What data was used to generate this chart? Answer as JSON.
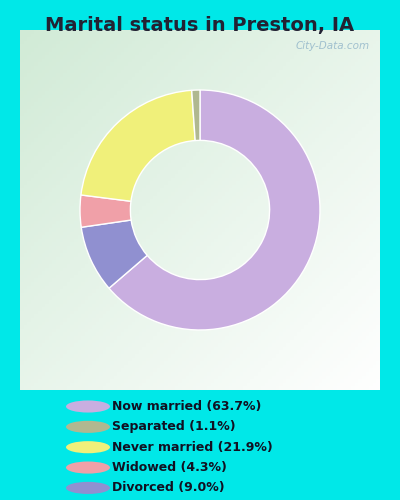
{
  "title": "Marital status in Preston, IA",
  "values": [
    63.7,
    9.0,
    4.3,
    21.9,
    1.1
  ],
  "colors": [
    "#c9aee0",
    "#9090d0",
    "#f0a0a8",
    "#f0f07a",
    "#b0b890"
  ],
  "legend_order": [
    0,
    4,
    3,
    2,
    1
  ],
  "legend_labels": [
    "Now married (63.7%)",
    "Separated (1.1%)",
    "Never married (21.9%)",
    "Widowed (4.3%)",
    "Divorced (9.0%)"
  ],
  "legend_colors": [
    "#c9aee0",
    "#b0b890",
    "#f0f07a",
    "#f0a0a8",
    "#9090d0"
  ],
  "bg_outer": "#00e8e8",
  "bg_chart_color": "#d8eedc",
  "title_fontsize": 14,
  "title_color": "#222233",
  "watermark": "City-Data.com",
  "donut_width": 0.42,
  "startangle": 90
}
